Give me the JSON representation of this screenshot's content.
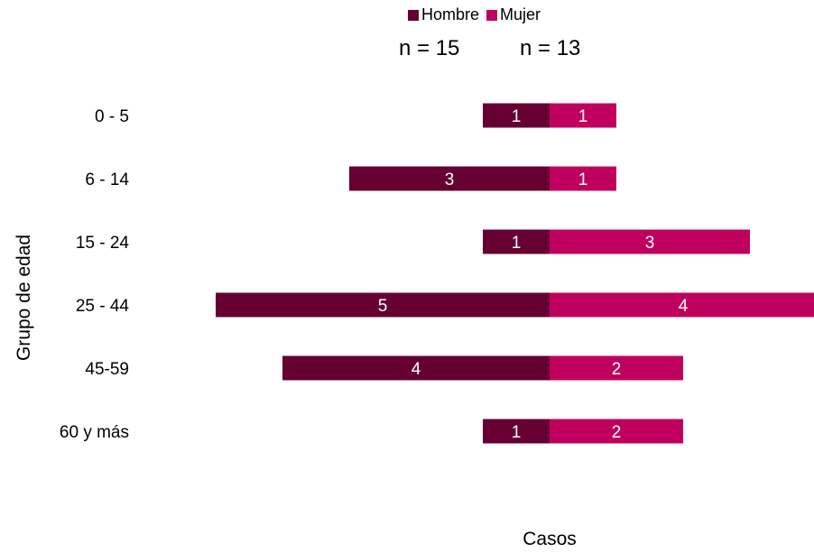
{
  "chart_data": {
    "type": "bar",
    "orientation": "horizontal",
    "layout": "population-pyramid",
    "categories": [
      "0 - 5",
      "6 - 14",
      "15 - 24",
      "25 - 44",
      "45-59",
      "60 y más"
    ],
    "series": [
      {
        "name": "Hombre",
        "values": [
          1,
          3,
          1,
          5,
          4,
          1
        ],
        "color": "#660033"
      },
      {
        "name": "Mujer",
        "values": [
          1,
          1,
          3,
          4,
          2,
          2
        ],
        "color": "#c0005f"
      }
    ],
    "xlabel": "Casos",
    "ylabel": "Grupo de edad",
    "legend_position": "top",
    "grid": false,
    "annotations": {
      "hombre_n": "n = 15",
      "mujer_n": "n = 13"
    },
    "label_color": "#ffffff"
  }
}
